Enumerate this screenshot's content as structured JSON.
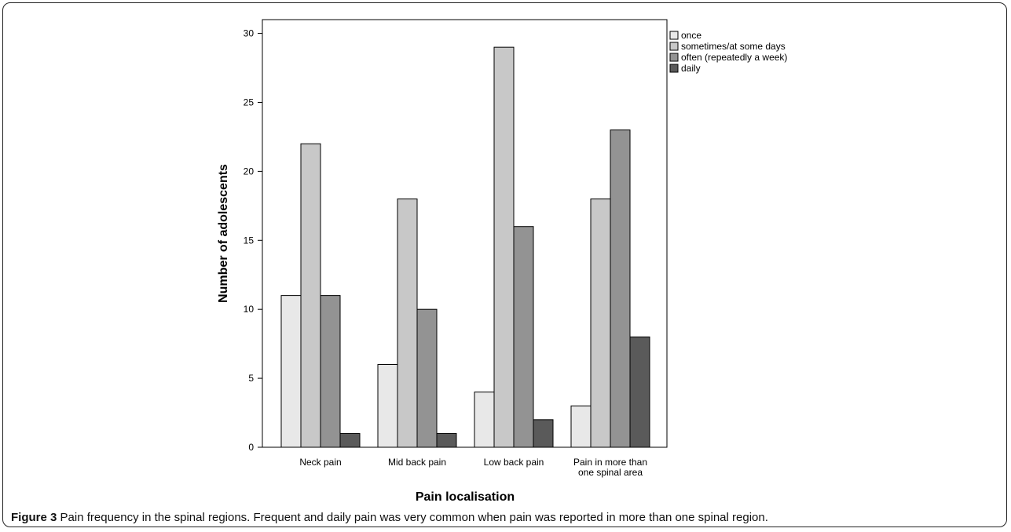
{
  "caption": {
    "label": "Figure 3",
    "text": "Pain frequency in the spinal regions. Frequent and daily pain was very common when pain was reported in more than one spinal region."
  },
  "chart_data": {
    "type": "bar",
    "xlabel": "Pain localisation",
    "ylabel": "Number of adolescents",
    "ylim": [
      0,
      31
    ],
    "yticks": [
      0,
      5,
      10,
      15,
      20,
      25,
      30
    ],
    "grid": false,
    "legend_position": "top-right",
    "categories": [
      [
        "Neck pain"
      ],
      [
        "Mid back pain"
      ],
      [
        "Low back pain"
      ],
      [
        "Pain in more than",
        "one spinal area"
      ]
    ],
    "series": [
      {
        "name": "once",
        "color": "#e8e8e8",
        "values": [
          11,
          6,
          4,
          3
        ]
      },
      {
        "name": "sometimes/at some days",
        "color": "#c8c8c8",
        "values": [
          22,
          18,
          29,
          18
        ]
      },
      {
        "name": "often (repeatedly a week)",
        "color": "#939393",
        "values": [
          11,
          10,
          16,
          23
        ]
      },
      {
        "name": "daily",
        "color": "#5a5a5a",
        "values": [
          1,
          1,
          2,
          8
        ]
      }
    ]
  }
}
